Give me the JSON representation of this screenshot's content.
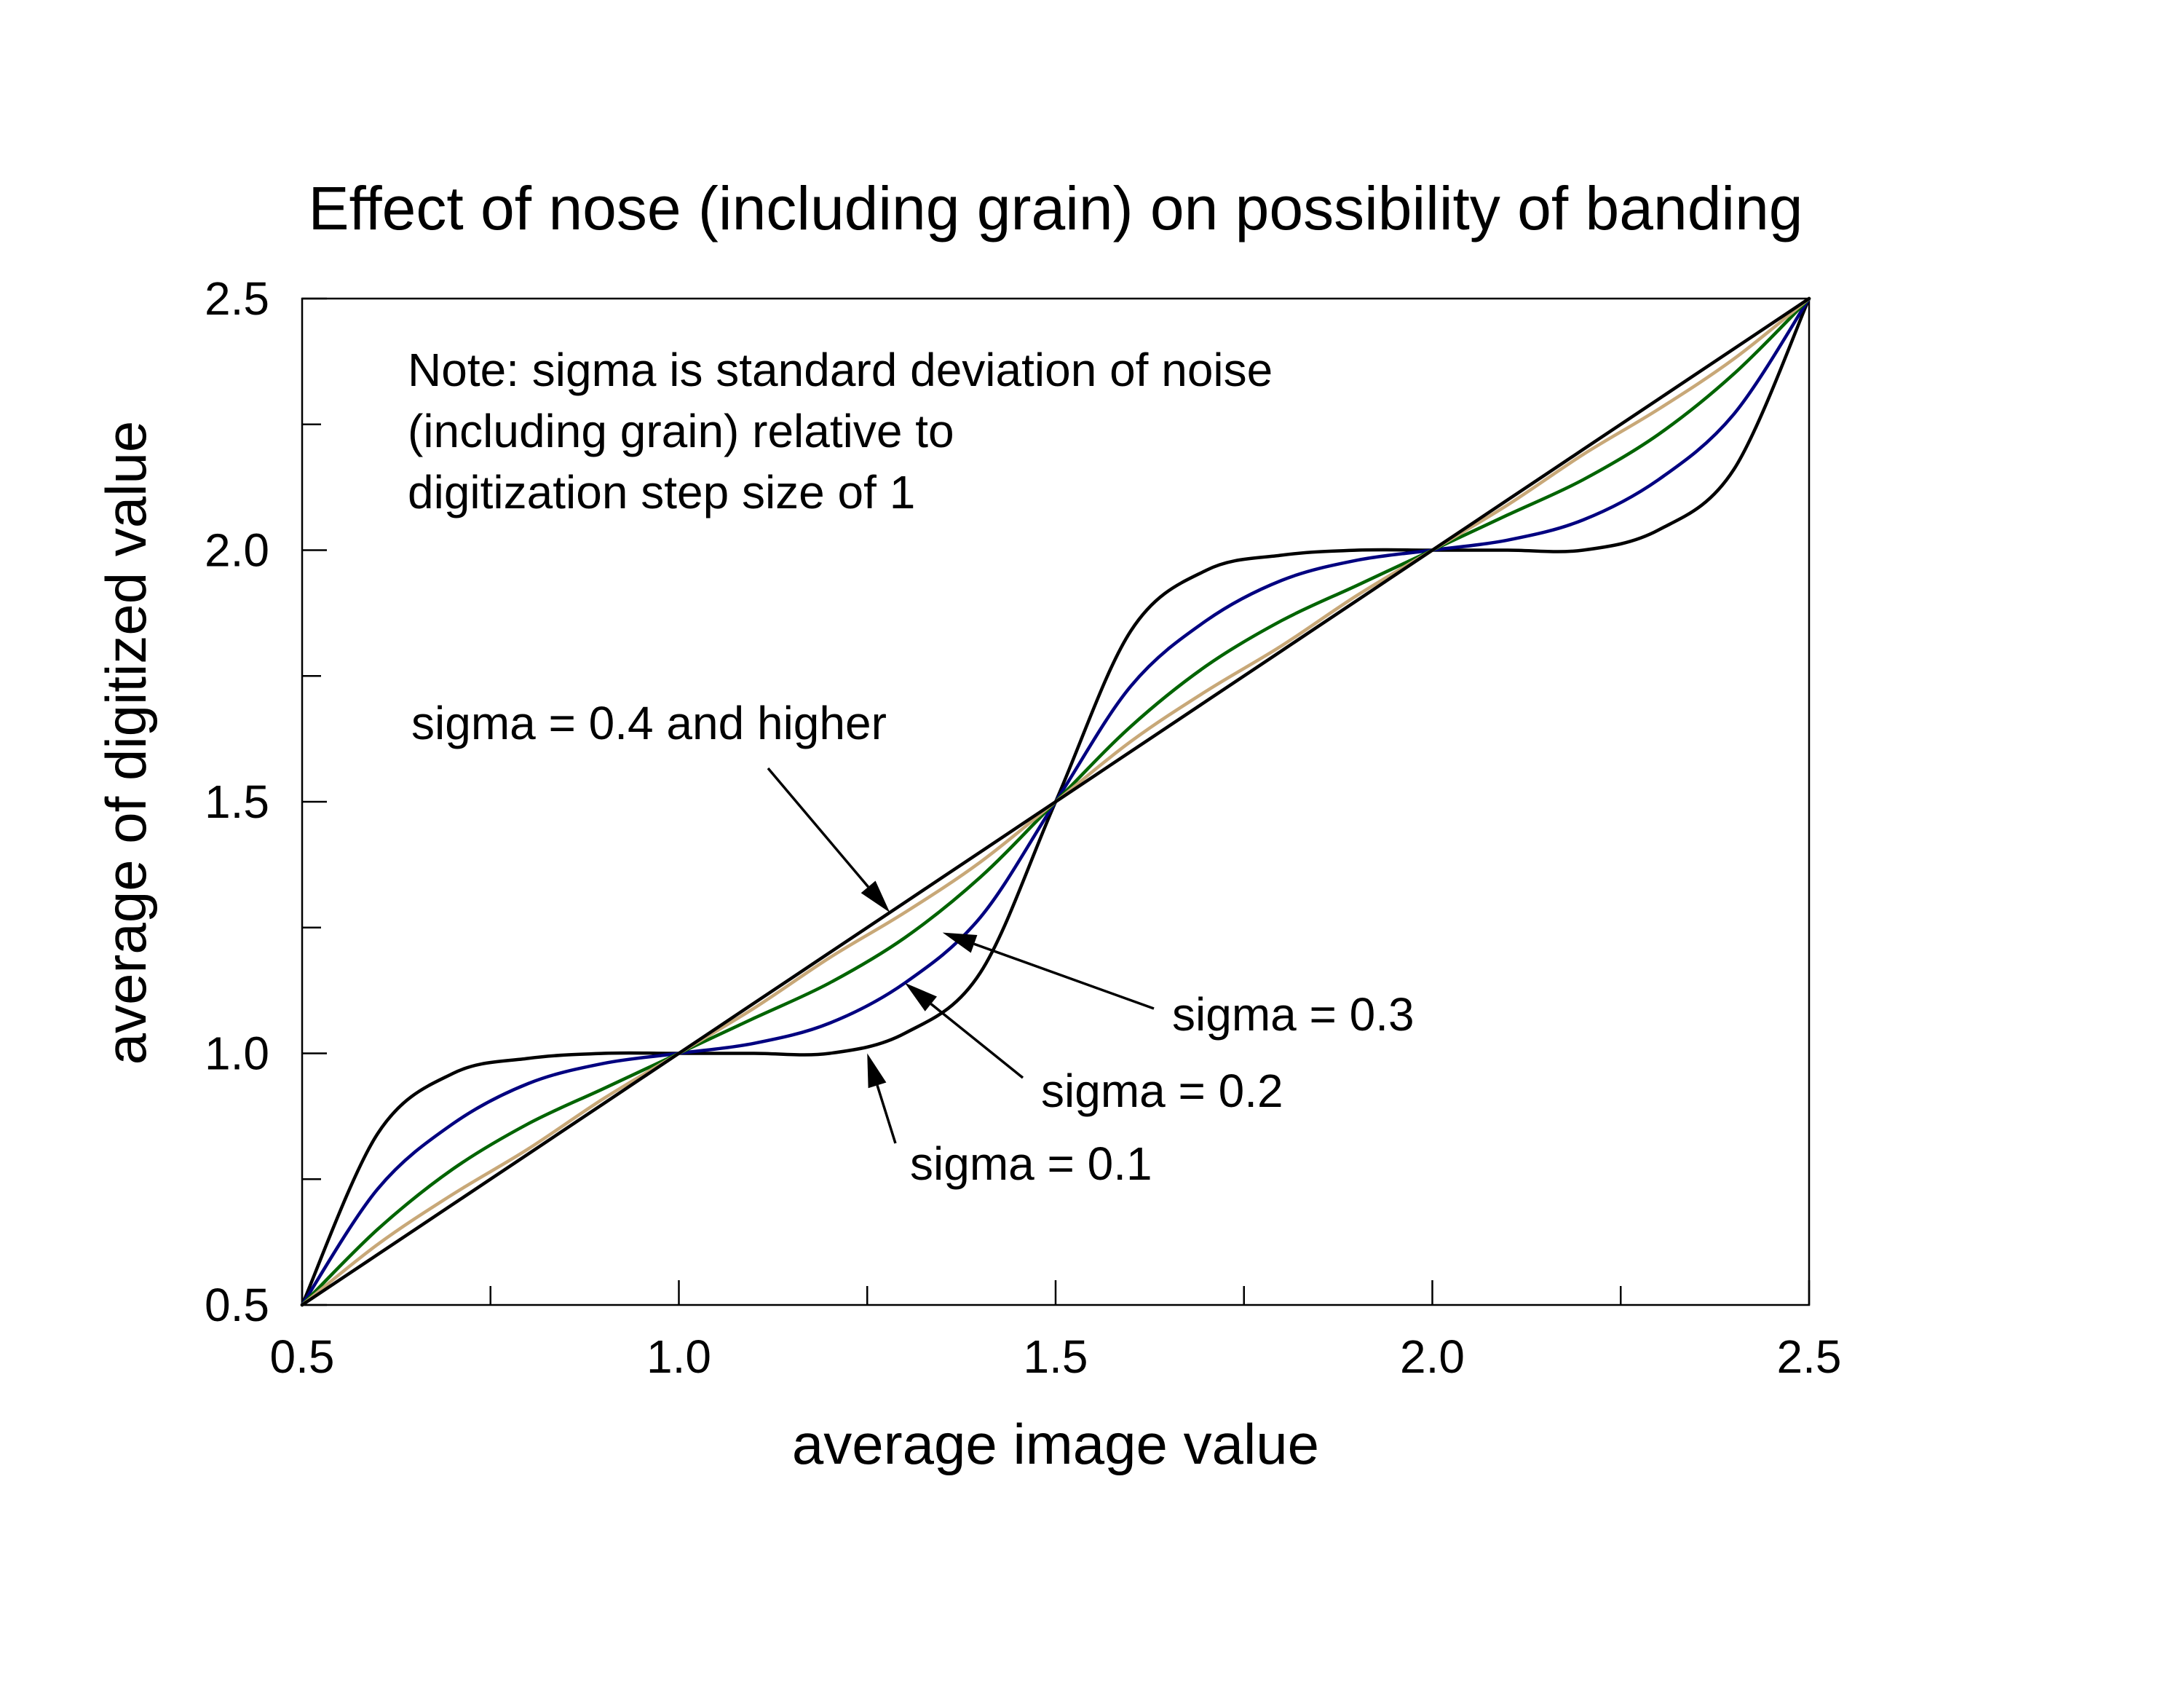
{
  "chart_data": {
    "type": "line",
    "title": "Effect of nose (including grain) on possibility of banding",
    "xlabel": "average image value",
    "ylabel": "average of digitized value",
    "xlim": [
      0.5,
      2.5
    ],
    "ylim": [
      0.5,
      2.5
    ],
    "x_ticks": [
      "0.5",
      "1.0",
      "1.5",
      "2.0",
      "2.5"
    ],
    "y_ticks": [
      "0.5",
      "1.0",
      "1.5",
      "2.0",
      "2.5"
    ],
    "grid": false,
    "legend": "none",
    "x": [
      0.5,
      0.6,
      0.7,
      0.8,
      0.9,
      1.0,
      1.1,
      1.2,
      1.3,
      1.4,
      1.5,
      1.6,
      1.7,
      1.8,
      1.9,
      2.0,
      2.1,
      2.2,
      2.3,
      2.4,
      2.5
    ],
    "series": [
      {
        "color": "#000000",
        "values": [
          0.5,
          0.84,
          0.96,
          0.99,
          1.0,
          1.0,
          1.0,
          1.0,
          1.04,
          1.16,
          1.5,
          1.84,
          1.96,
          1.99,
          2.0,
          2.0,
          2.0,
          2.0,
          2.04,
          2.16,
          2.5
        ]
      },
      {
        "color": "#000080",
        "values": [
          0.5,
          0.73,
          0.86,
          0.94,
          0.98,
          1.0,
          1.02,
          1.06,
          1.14,
          1.27,
          1.5,
          1.73,
          1.86,
          1.94,
          1.98,
          2.0,
          2.02,
          2.06,
          2.14,
          2.27,
          2.5
        ]
      },
      {
        "color": "#006400",
        "values": [
          0.5,
          0.65,
          0.77,
          0.86,
          0.93,
          1.0,
          1.07,
          1.14,
          1.23,
          1.35,
          1.5,
          1.65,
          1.77,
          1.86,
          1.93,
          2.0,
          2.07,
          2.14,
          2.23,
          2.35,
          2.5
        ]
      },
      {
        "color": "#c8a878",
        "values": [
          0.5,
          0.62,
          0.72,
          0.81,
          0.91,
          1.0,
          1.09,
          1.19,
          1.28,
          1.38,
          1.5,
          1.62,
          1.72,
          1.81,
          1.91,
          2.0,
          2.09,
          2.19,
          2.28,
          2.38,
          2.5
        ]
      },
      {
        "color": "#000000",
        "values": [
          0.5,
          0.6,
          0.7,
          0.8,
          0.9,
          1.0,
          1.1,
          1.2,
          1.3,
          1.4,
          1.5,
          1.6,
          1.7,
          1.8,
          1.9,
          2.0,
          2.1,
          2.2,
          2.3,
          2.4,
          2.5
        ]
      }
    ],
    "note_lines": [
      "Note: sigma is standard deviation of noise",
      "(including grain) relative to",
      "digitization step size of 1"
    ],
    "annotations": [
      {
        "text": "sigma = 0.4 and higher",
        "points_to": [
          1.28,
          1.28
        ]
      },
      {
        "text": "sigma = 0.3",
        "points_to": [
          1.35,
          1.24
        ]
      },
      {
        "text": "sigma = 0.2",
        "points_to": [
          1.3,
          1.14
        ]
      },
      {
        "text": "sigma = 0.1",
        "points_to": [
          1.25,
          1.0
        ]
      }
    ]
  }
}
